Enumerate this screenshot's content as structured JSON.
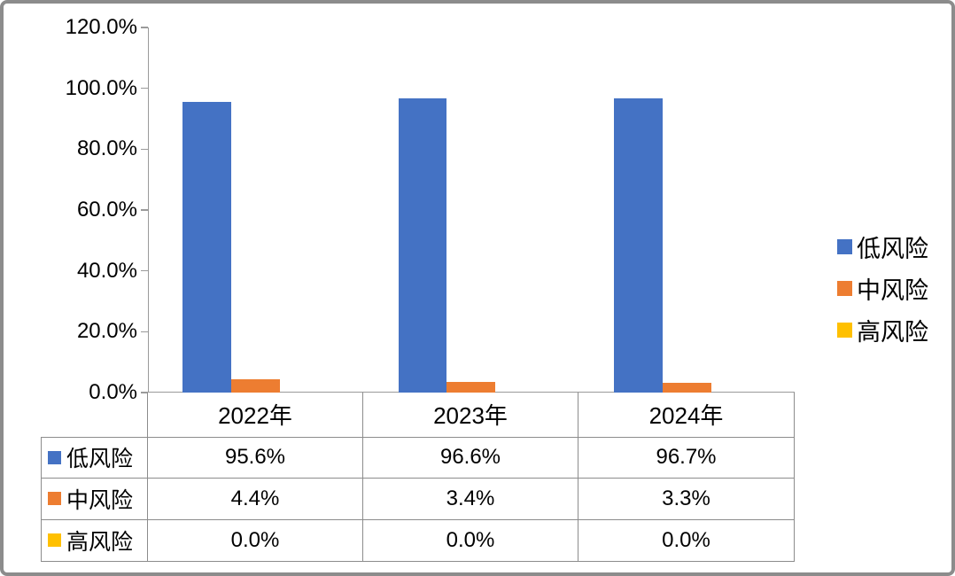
{
  "chart_data": {
    "type": "bar",
    "title": "",
    "categories": [
      "2022年",
      "2023年",
      "2024年"
    ],
    "series": [
      {
        "key": "low-risk",
        "name": "低风险",
        "color": "#4472C4",
        "values": [
          95.6,
          96.6,
          96.7
        ],
        "labels": [
          "95.6%",
          "96.6%",
          "96.7%"
        ]
      },
      {
        "key": "medium-risk",
        "name": "中风险",
        "color": "#ED7D31",
        "values": [
          4.4,
          3.4,
          3.3
        ],
        "labels": [
          "4.4%",
          "3.4%",
          "3.3%"
        ]
      },
      {
        "key": "high-risk",
        "name": "高风险",
        "color": "#FFC000",
        "values": [
          0.0,
          0.0,
          0.0
        ],
        "labels": [
          "0.0%",
          "0.0%",
          "0.0%"
        ]
      }
    ],
    "xlabel": "",
    "ylabel": "",
    "ylim": [
      0,
      120
    ],
    "ytick_step": 20,
    "ytick_labels": [
      "0.0%",
      "20.0%",
      "40.0%",
      "60.0%",
      "80.0%",
      "100.0%",
      "120.0%"
    ],
    "grid": false,
    "legend_position": "right",
    "data_table_shown": true
  },
  "colors": {
    "bar_blue": "#4472C4",
    "bar_orange": "#ED7D31",
    "bar_yellow": "#FFC000",
    "axis_line": "#9A9A9A",
    "table_border": "#8C8C8C",
    "frame_border": "#8C8C8C",
    "background": "#FFFFFF",
    "text": "#000000"
  }
}
